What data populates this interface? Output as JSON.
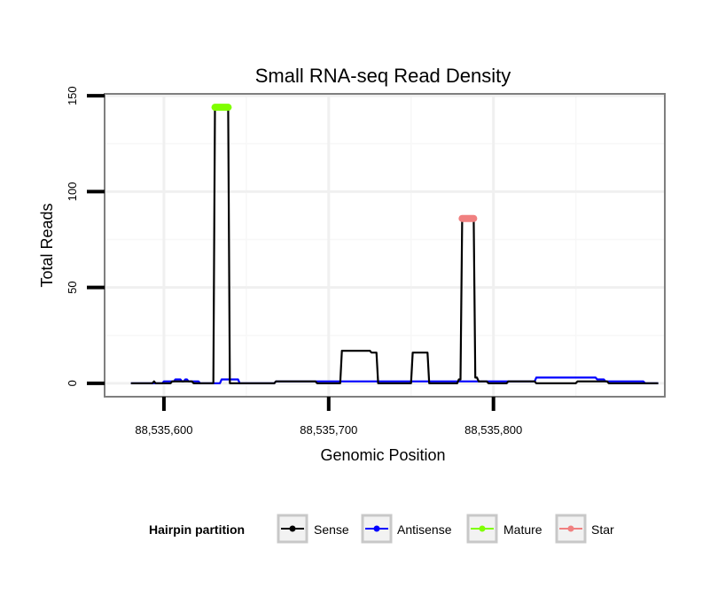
{
  "chart_data": {
    "type": "line",
    "title": "Small RNA-seq Read Density",
    "xlabel": "Genomic Position",
    "ylabel": "Total Reads",
    "xlim": [
      88535564,
      88535904
    ],
    "ylim": [
      -7,
      151
    ],
    "x_ticks": [
      {
        "value": 88535600,
        "label": "88,535,600"
      },
      {
        "value": 88535700,
        "label": "88,535,700"
      },
      {
        "value": 88535800,
        "label": "88,535,800"
      }
    ],
    "y_ticks": [
      {
        "value": 0,
        "label": "0"
      },
      {
        "value": 50,
        "label": "50"
      },
      {
        "value": 100,
        "label": "100"
      },
      {
        "value": 150,
        "label": "150"
      }
    ],
    "grid": true,
    "legend": {
      "title": "Hairpin partition",
      "position": "bottom",
      "entries": [
        {
          "name": "Sense",
          "color": "#000000"
        },
        {
          "name": "Antisense",
          "color": "#0000ff"
        },
        {
          "name": "Mature",
          "color": "#7fff00"
        },
        {
          "name": "Star",
          "color": "#f08080"
        }
      ]
    },
    "series": [
      {
        "name": "Sense",
        "color": "#000000",
        "x": [
          88535580,
          88535593,
          88535594,
          88535595,
          88535604,
          88535605,
          88535617,
          88535618,
          88535630,
          88535631,
          88535639,
          88535640,
          88535667,
          88535668,
          88535692,
          88535693,
          88535707,
          88535708,
          88535725,
          88535726,
          88535729,
          88535730,
          88535750,
          88535751,
          88535760,
          88535761,
          88535766,
          88535767,
          88535778,
          88535779,
          88535780,
          88535781,
          88535788,
          88535789,
          88535790,
          88535791,
          88535796,
          88535797,
          88535808,
          88535809,
          88535825,
          88535826,
          88535850,
          88535851,
          88535869,
          88535870,
          88535900
        ],
        "y": [
          0,
          0,
          1,
          0,
          0,
          1,
          1,
          0,
          0,
          144,
          144,
          0,
          0,
          1,
          1,
          0,
          0,
          17,
          17,
          16,
          16,
          0,
          0,
          16,
          16,
          0,
          0,
          0,
          0,
          2,
          2,
          86,
          86,
          3,
          3,
          1,
          1,
          0,
          0,
          1,
          1,
          0,
          0,
          1,
          1,
          0,
          0
        ]
      },
      {
        "name": "Antisense",
        "color": "#0000ff",
        "x": [
          88535580,
          88535599,
          88535600,
          88535606,
          88535607,
          88535610,
          88535611,
          88535612,
          88535613,
          88535614,
          88535615,
          88535621,
          88535622,
          88535634,
          88535635,
          88535645,
          88535646,
          88535667,
          88535668,
          88535825,
          88535826,
          88535862,
          88535863,
          88535867,
          88535868,
          88535891,
          88535892,
          88535900
        ],
        "y": [
          0,
          0,
          1,
          1,
          2,
          2,
          1,
          1,
          2,
          2,
          1,
          1,
          0,
          0,
          2,
          2,
          0,
          0,
          1,
          1,
          3,
          3,
          2,
          2,
          1,
          1,
          0,
          0
        ]
      }
    ],
    "highlights": [
      {
        "name": "Mature",
        "color": "#7fff00",
        "x": [
          88535631,
          88535639
        ],
        "y": 144
      },
      {
        "name": "Star",
        "color": "#f08080",
        "x": [
          88535781,
          88535788
        ],
        "y": 86
      }
    ]
  }
}
